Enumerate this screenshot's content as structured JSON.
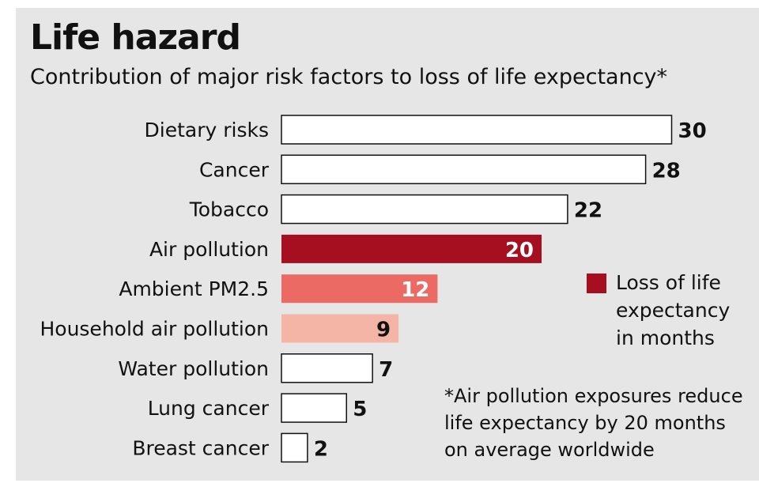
{
  "title": "Life hazard",
  "subtitle": "Contribution of major risk factors to loss of life expectancy*",
  "legend": {
    "label": "Loss of life expectancy in months",
    "color": "#a50f1f"
  },
  "footnote": "*Air pollution exposures reduce life expectancy by 20 months on average worldwide",
  "colors": {
    "background": "#e6e6e6",
    "default_bar": "#ffffff",
    "air_pollution": "#a50f1f",
    "ambient_pm25": "#ec6a64",
    "household_air_pollution": "#f4b4a6"
  },
  "chart_data": {
    "type": "bar",
    "orientation": "horizontal",
    "title": "Life hazard",
    "subtitle": "Contribution of major risk factors to loss of life expectancy*",
    "categories": [
      "Dietary risks",
      "Cancer",
      "Tobacco",
      "Air pollution",
      "Ambient PM2.5",
      "Household air pollution",
      "Water pollution",
      "Lung cancer",
      "Breast cancer"
    ],
    "values": [
      30,
      28,
      22,
      20,
      12,
      9,
      7,
      5,
      2
    ],
    "value_labels": [
      "30",
      "28",
      "22",
      "20",
      "12",
      "9",
      "7",
      "5",
      "2"
    ],
    "bar_colors": [
      "#ffffff",
      "#ffffff",
      "#ffffff",
      "#a50f1f",
      "#ec6a64",
      "#f4b4a6",
      "#ffffff",
      "#ffffff",
      "#ffffff"
    ],
    "label_inside": [
      false,
      false,
      false,
      true,
      true,
      true,
      false,
      false,
      false
    ],
    "xlabel": "",
    "ylabel": "",
    "grid": false,
    "legend_position": "right"
  }
}
